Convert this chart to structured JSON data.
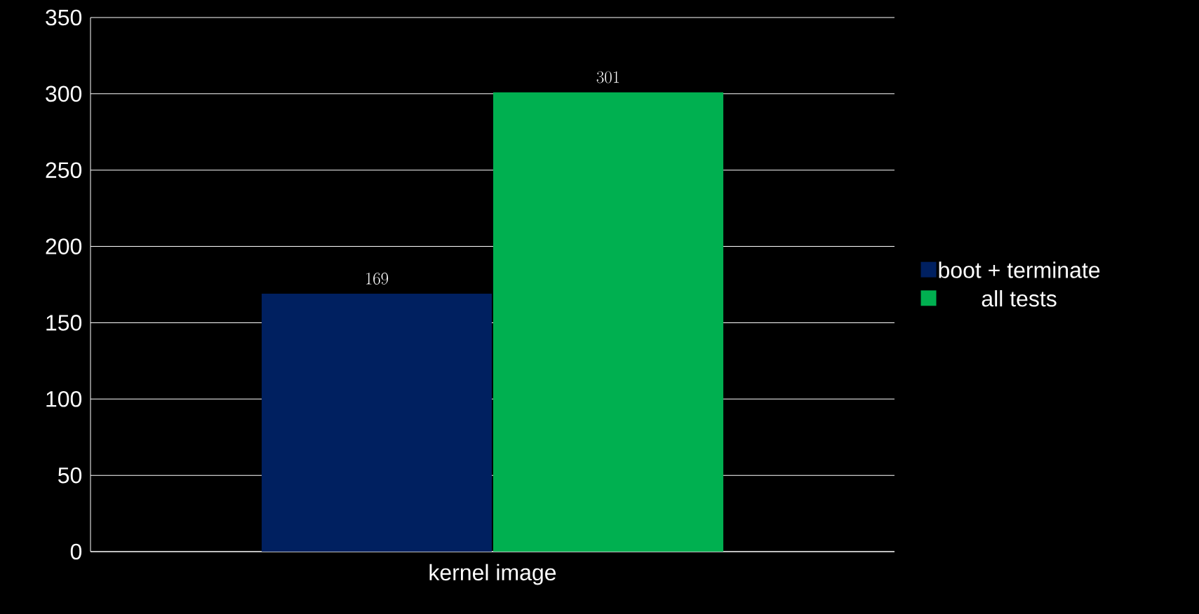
{
  "chart_data": {
    "type": "bar",
    "xlabel": null,
    "categories": [
      "kernel image"
    ],
    "series": [
      {
        "name": "boot + terminate",
        "color": "#002060",
        "values": [
          169
        ]
      },
      {
        "name": "all tests",
        "color": "#00b050",
        "values": [
          301
        ]
      }
    ],
    "ylim": [
      0,
      350
    ],
    "yticks": [
      0,
      50,
      100,
      150,
      200,
      250,
      300,
      350
    ],
    "grid": "y",
    "legend": "right",
    "data_labels": true
  }
}
